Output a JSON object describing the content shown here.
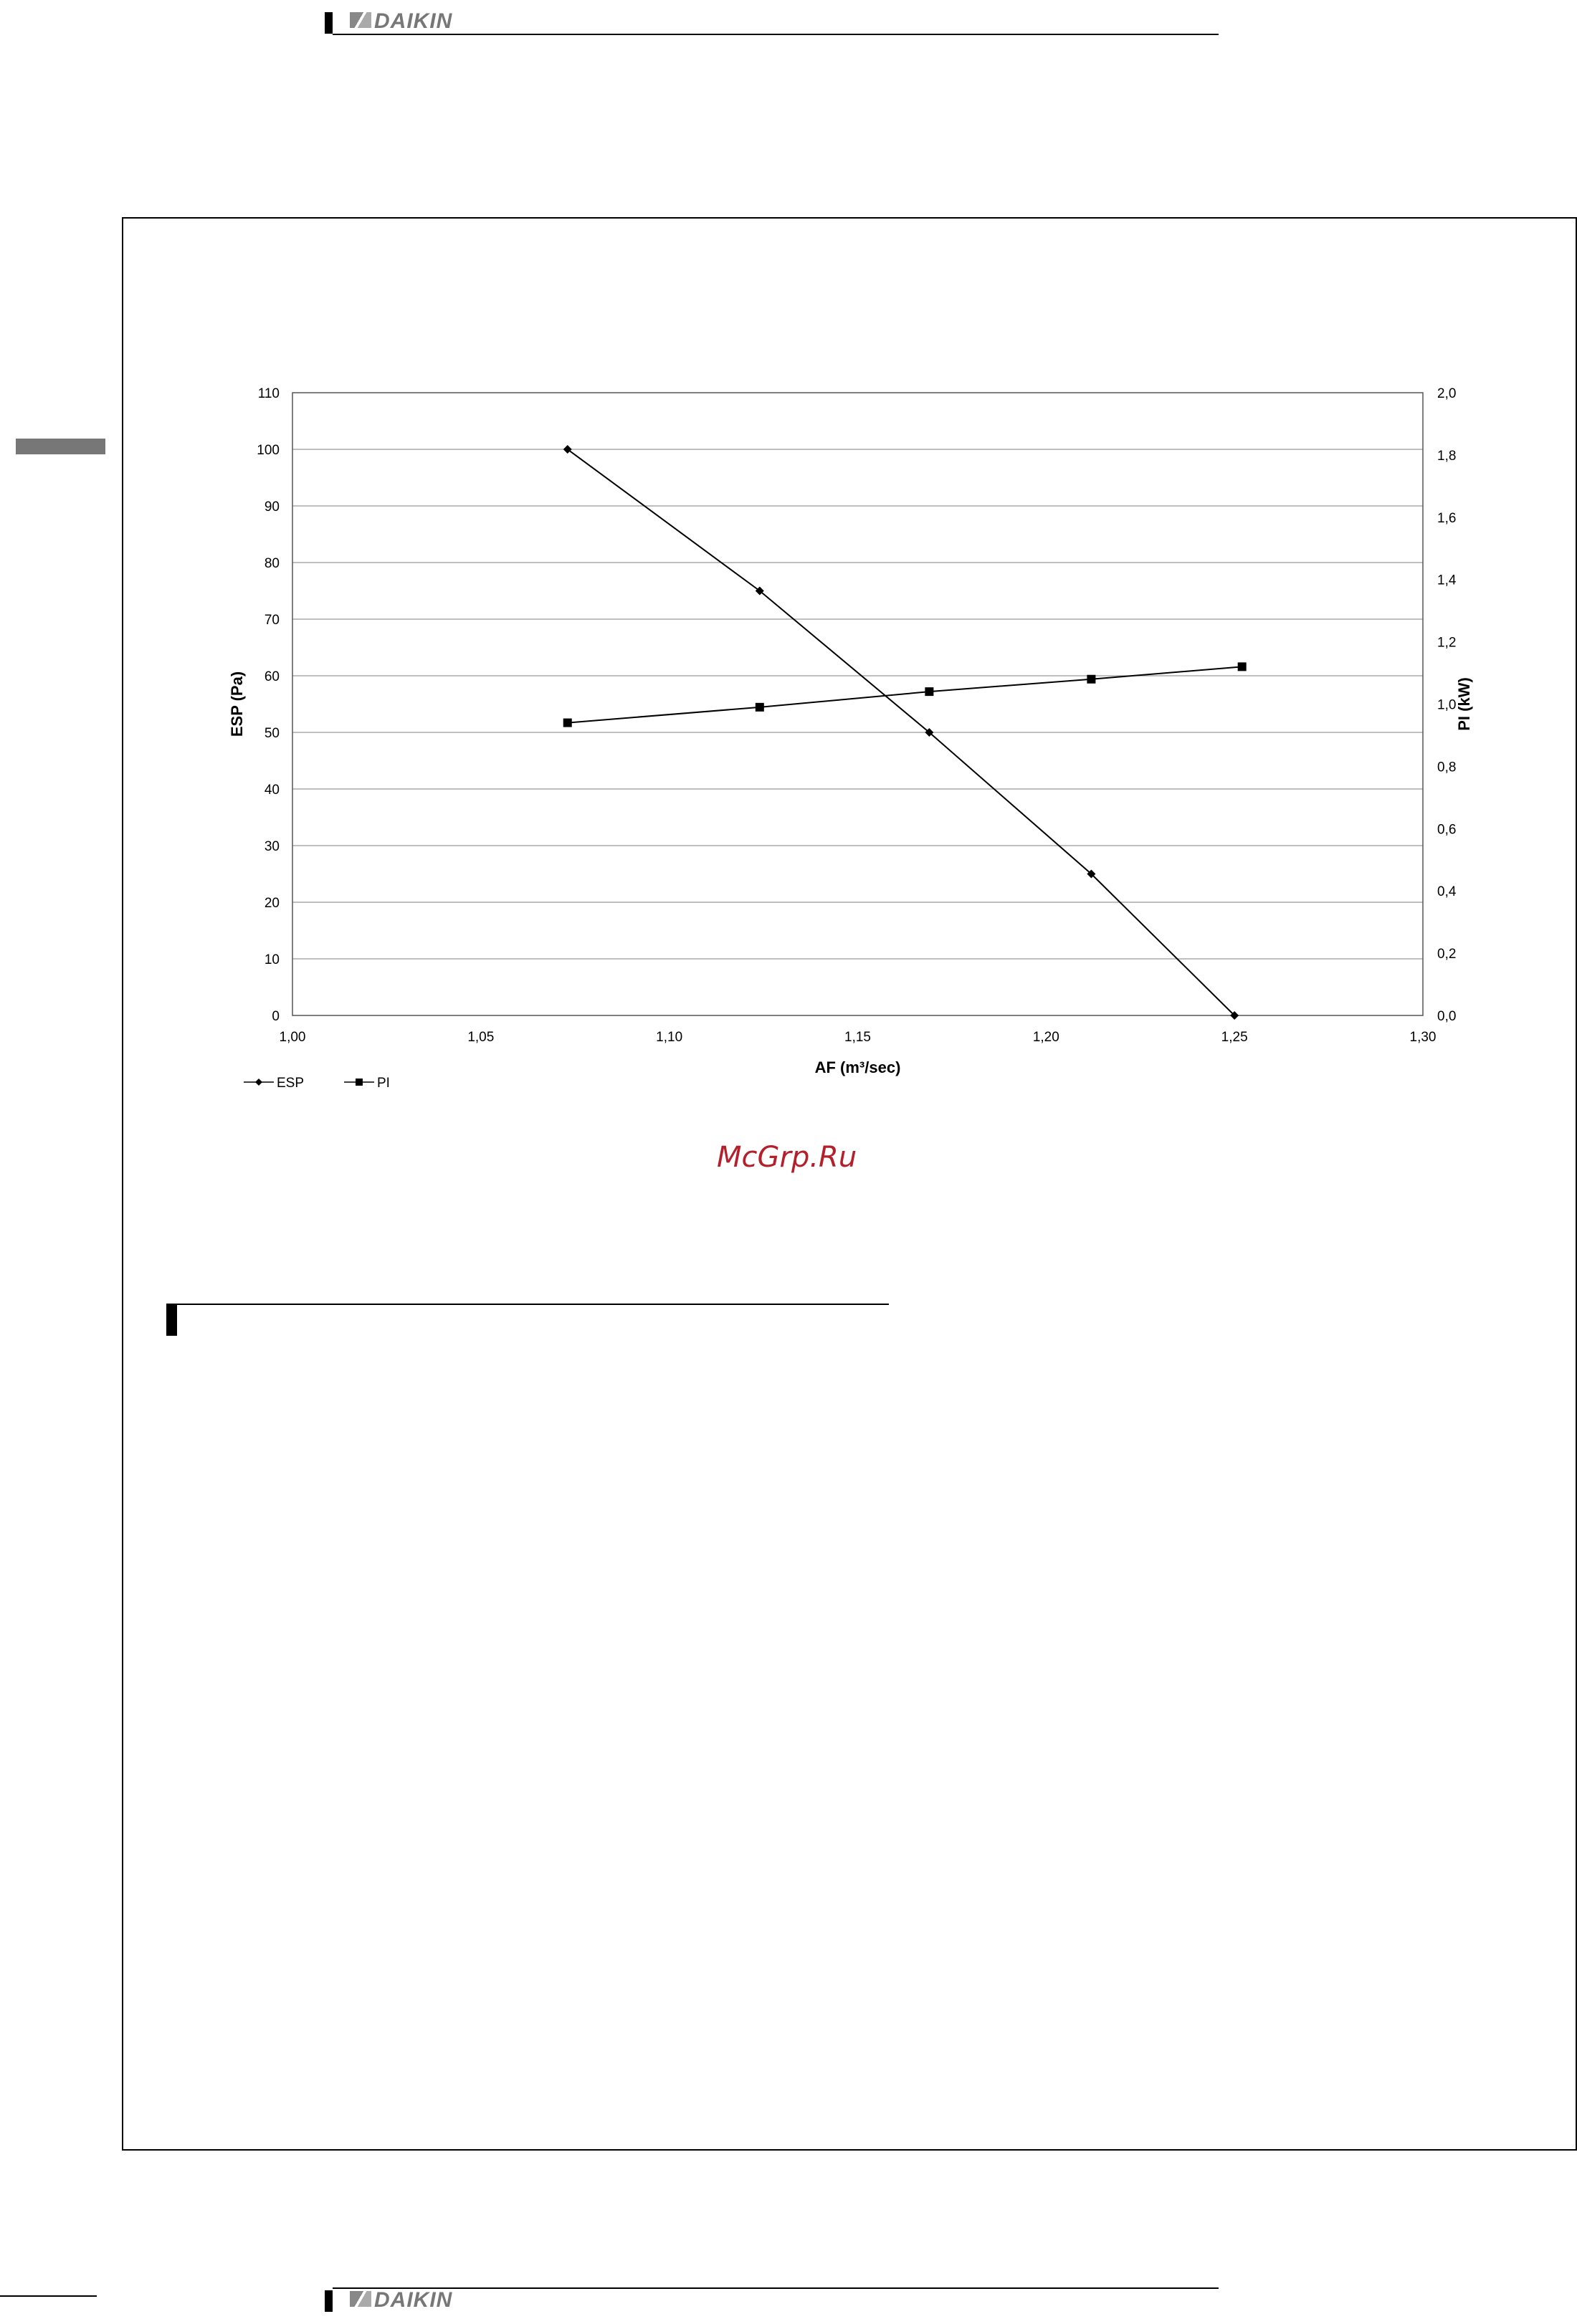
{
  "header": {
    "brand": "DAIKIN"
  },
  "footer": {
    "brand": "DAIKIN"
  },
  "watermark": "McGrp.Ru",
  "colors": {
    "line": "#000000",
    "grid": "#999999",
    "watermark": "#b3202c",
    "logo": "#777777"
  },
  "chart_data": {
    "type": "line",
    "title": "",
    "xlabel": "AF (m³/sec)",
    "ylabel": "ESP (Pa)",
    "y2label": "PI (kW)",
    "xlim": [
      1.0,
      1.3
    ],
    "ylim": [
      0,
      110
    ],
    "y2lim": [
      0,
      2.0
    ],
    "x_ticks": [
      "1,00",
      "1,05",
      "1,10",
      "1,15",
      "1,20",
      "1,25",
      "1,30"
    ],
    "y_ticks": [
      "0",
      "10",
      "20",
      "30",
      "40",
      "50",
      "60",
      "70",
      "80",
      "90",
      "100",
      "110"
    ],
    "y2_ticks": [
      "0,0",
      "0,2",
      "0,4",
      "0,6",
      "0,8",
      "1,0",
      "1,2",
      "1,4",
      "1,6",
      "1,8",
      "2,0"
    ],
    "grid": true,
    "legend_position": "bottom-left",
    "series": [
      {
        "name": "ESP",
        "axis": "left",
        "marker": "diamond",
        "x": [
          1.073,
          1.124,
          1.169,
          1.212,
          1.25
        ],
        "y": [
          100,
          75,
          50,
          25,
          0
        ]
      },
      {
        "name": "PI",
        "axis": "right",
        "marker": "square",
        "x": [
          1.073,
          1.124,
          1.169,
          1.212,
          1.252
        ],
        "y": [
          0.94,
          0.99,
          1.04,
          1.08,
          1.12
        ]
      }
    ]
  }
}
